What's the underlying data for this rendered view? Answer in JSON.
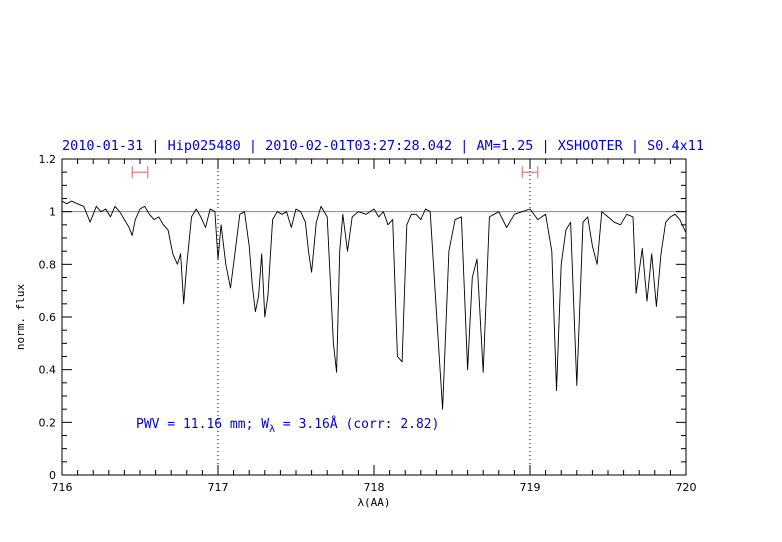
{
  "chart_data": {
    "type": "line",
    "title": "2010-01-31 | Hip025480 | 2010-02-01T03:27:28.042 | AM=1.25 | XSHOOTER | S0.4x11",
    "xlabel": "λ(AA)",
    "ylabel": "norm. flux",
    "xlim": [
      716,
      720
    ],
    "ylim": [
      0,
      1.2
    ],
    "x_ticks": [
      "716",
      "717",
      "718",
      "719",
      "720"
    ],
    "y_ticks": [
      "0",
      "0.2",
      "0.4",
      "0.6",
      "0.8",
      "1",
      "1.2"
    ],
    "annotation": {
      "prefix": "PWV = 11.16 mm; W",
      "subscript": "λ",
      "suffix": " = 3.16Å (corr: 2.82)"
    },
    "reference_line": {
      "y": 1.0,
      "color": "#e06060"
    },
    "vertical_markers": [
      717.0,
      719.0
    ],
    "intervals": [
      {
        "x_start": 716.45,
        "x_end": 716.55,
        "y": 1.15
      },
      {
        "x_start": 718.95,
        "x_end": 719.05,
        "y": 1.15
      }
    ],
    "series": [
      {
        "color": "#000000",
        "x": [
          716.0,
          716.03,
          716.06,
          716.1,
          716.14,
          716.18,
          716.2,
          716.22,
          716.25,
          716.28,
          716.31,
          716.34,
          716.37,
          716.4,
          716.43,
          716.45,
          716.47,
          716.5,
          716.53,
          716.56,
          716.59,
          716.62,
          716.65,
          716.68,
          716.71,
          716.74,
          716.76,
          716.78,
          716.8,
          716.83,
          716.86,
          716.89,
          716.92,
          716.95,
          716.98,
          717.0,
          717.02,
          717.05,
          717.08,
          717.11,
          717.14,
          717.17,
          717.2,
          717.22,
          717.24,
          717.26,
          717.28,
          717.3,
          717.32,
          717.35,
          717.38,
          717.41,
          717.44,
          717.47,
          717.5,
          717.53,
          717.56,
          717.58,
          717.6,
          717.63,
          717.66,
          717.7,
          717.74,
          717.76,
          717.78,
          717.8,
          717.83,
          717.86,
          717.9,
          717.95,
          718.0,
          718.03,
          718.06,
          718.09,
          718.12,
          718.15,
          718.18,
          718.21,
          718.24,
          718.27,
          718.3,
          718.33,
          718.36,
          718.4,
          718.44,
          718.48,
          718.52,
          718.56,
          718.6,
          718.63,
          718.66,
          718.7,
          718.74,
          718.77,
          718.8,
          718.85,
          718.9,
          718.95,
          719.0,
          719.05,
          719.1,
          719.14,
          719.17,
          719.2,
          719.23,
          719.26,
          719.3,
          719.34,
          719.37,
          719.4,
          719.43,
          719.46,
          719.5,
          719.54,
          719.58,
          719.62,
          719.66,
          719.68,
          719.72,
          719.75,
          719.78,
          719.81,
          719.84,
          719.87,
          719.9,
          719.93,
          719.96,
          720.0
        ],
        "y": [
          1.04,
          1.03,
          1.04,
          1.03,
          1.02,
          0.96,
          0.99,
          1.02,
          1.0,
          1.01,
          0.98,
          1.02,
          1.0,
          0.97,
          0.94,
          0.91,
          0.97,
          1.01,
          1.02,
          0.99,
          0.97,
          0.98,
          0.95,
          0.93,
          0.84,
          0.8,
          0.84,
          0.65,
          0.8,
          0.98,
          1.01,
          0.98,
          0.94,
          1.01,
          1.0,
          0.82,
          0.95,
          0.8,
          0.71,
          0.85,
          0.99,
          1.0,
          0.87,
          0.72,
          0.62,
          0.68,
          0.84,
          0.6,
          0.68,
          0.97,
          1.0,
          0.99,
          1.0,
          0.94,
          1.01,
          1.0,
          0.96,
          0.85,
          0.77,
          0.96,
          1.02,
          0.98,
          0.5,
          0.39,
          0.85,
          0.99,
          0.85,
          0.98,
          1.0,
          0.99,
          1.01,
          0.98,
          1.0,
          0.95,
          0.97,
          0.45,
          0.43,
          0.95,
          0.99,
          0.99,
          0.97,
          1.01,
          1.0,
          0.62,
          0.25,
          0.85,
          0.97,
          0.98,
          0.4,
          0.75,
          0.82,
          0.39,
          0.98,
          0.99,
          1.0,
          0.94,
          0.99,
          1.0,
          1.01,
          0.97,
          0.99,
          0.85,
          0.32,
          0.8,
          0.93,
          0.96,
          0.34,
          0.96,
          0.98,
          0.87,
          0.8,
          1.0,
          0.98,
          0.96,
          0.95,
          0.99,
          0.98,
          0.69,
          0.86,
          0.66,
          0.84,
          0.64,
          0.84,
          0.96,
          0.98,
          0.99,
          0.97,
          0.92
        ]
      }
    ]
  }
}
